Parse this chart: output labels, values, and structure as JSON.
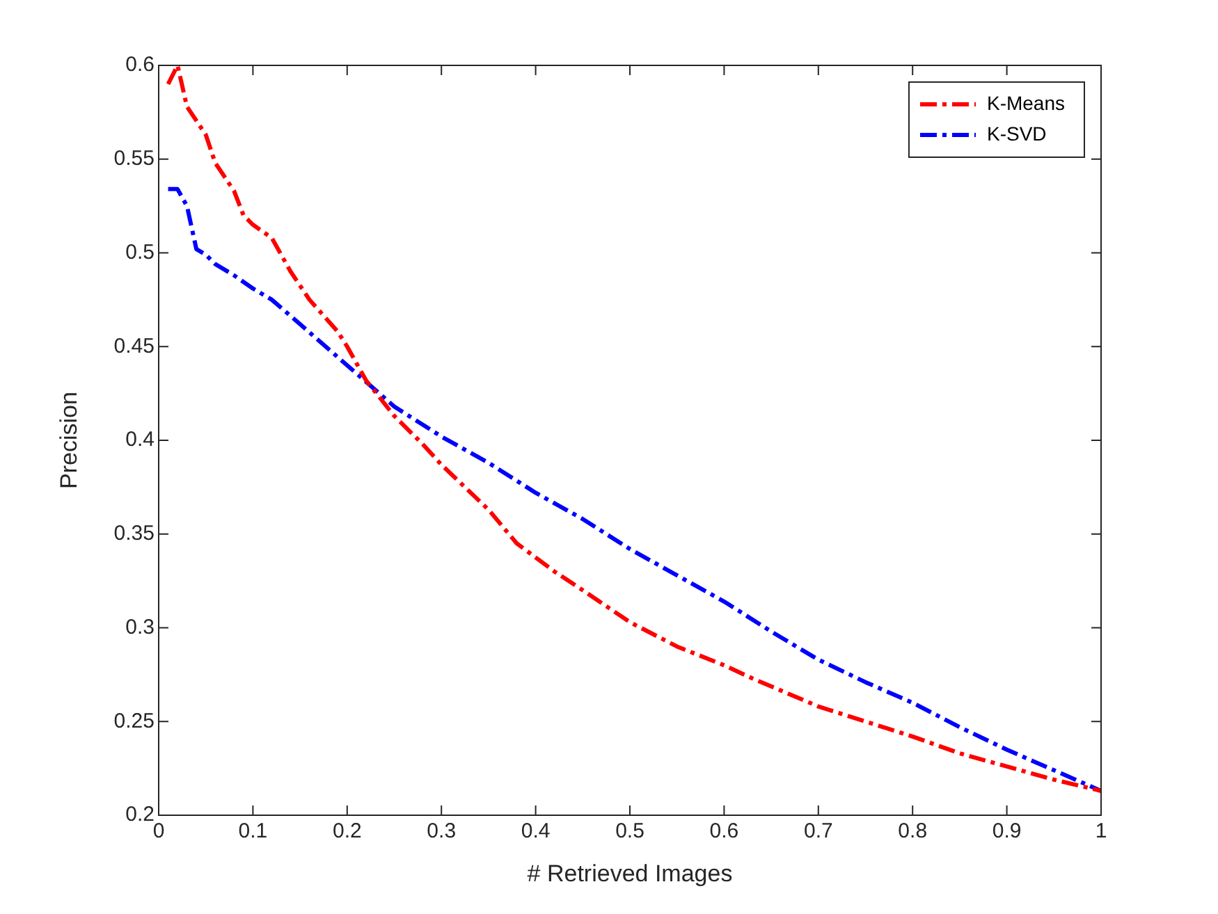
{
  "chart_data": {
    "type": "line",
    "xlabel": "# Retrieved Images",
    "ylabel": "Precision",
    "xlim": [
      0,
      1
    ],
    "xticks": [
      0,
      0.1,
      0.2,
      0.3,
      0.4,
      0.5,
      0.6,
      0.7,
      0.8,
      0.9,
      1
    ],
    "ylim": [
      0.2,
      0.6
    ],
    "yticks": [
      0.2,
      0.25,
      0.3,
      0.35,
      0.4,
      0.45,
      0.5,
      0.55,
      0.6
    ],
    "grid": false,
    "legend": "top right",
    "line_style": "dashed",
    "marker": "none",
    "series": [
      {
        "name": "K-Means",
        "color": "#ff0000",
        "x": [
          0.01,
          0.02,
          0.03,
          0.05,
          0.06,
          0.08,
          0.09,
          0.1,
          0.12,
          0.14,
          0.16,
          0.19,
          0.2,
          0.22,
          0.25,
          0.28,
          0.3,
          0.35,
          0.38,
          0.42,
          0.45,
          0.5,
          0.55,
          0.6,
          0.63,
          0.7,
          0.75,
          0.8,
          0.85,
          0.9,
          0.95,
          1.0
        ],
        "values": [
          0.59,
          0.6,
          0.578,
          0.563,
          0.548,
          0.533,
          0.52,
          0.515,
          0.508,
          0.49,
          0.475,
          0.458,
          0.45,
          0.432,
          0.413,
          0.398,
          0.387,
          0.363,
          0.345,
          0.33,
          0.32,
          0.303,
          0.29,
          0.28,
          0.273,
          0.258,
          0.25,
          0.242,
          0.233,
          0.226,
          0.219,
          0.213
        ]
      },
      {
        "name": "K-SVD",
        "color": "#0000ff",
        "x": [
          0.01,
          0.02,
          0.03,
          0.04,
          0.05,
          0.06,
          0.08,
          0.1,
          0.12,
          0.15,
          0.2,
          0.25,
          0.3,
          0.35,
          0.4,
          0.45,
          0.5,
          0.55,
          0.6,
          0.65,
          0.7,
          0.75,
          0.8,
          0.85,
          0.9,
          0.95,
          1.0
        ],
        "values": [
          0.534,
          0.534,
          0.525,
          0.502,
          0.499,
          0.494,
          0.488,
          0.481,
          0.475,
          0.462,
          0.44,
          0.418,
          0.402,
          0.388,
          0.372,
          0.358,
          0.342,
          0.328,
          0.314,
          0.298,
          0.283,
          0.271,
          0.26,
          0.247,
          0.235,
          0.224,
          0.213
        ]
      }
    ]
  }
}
